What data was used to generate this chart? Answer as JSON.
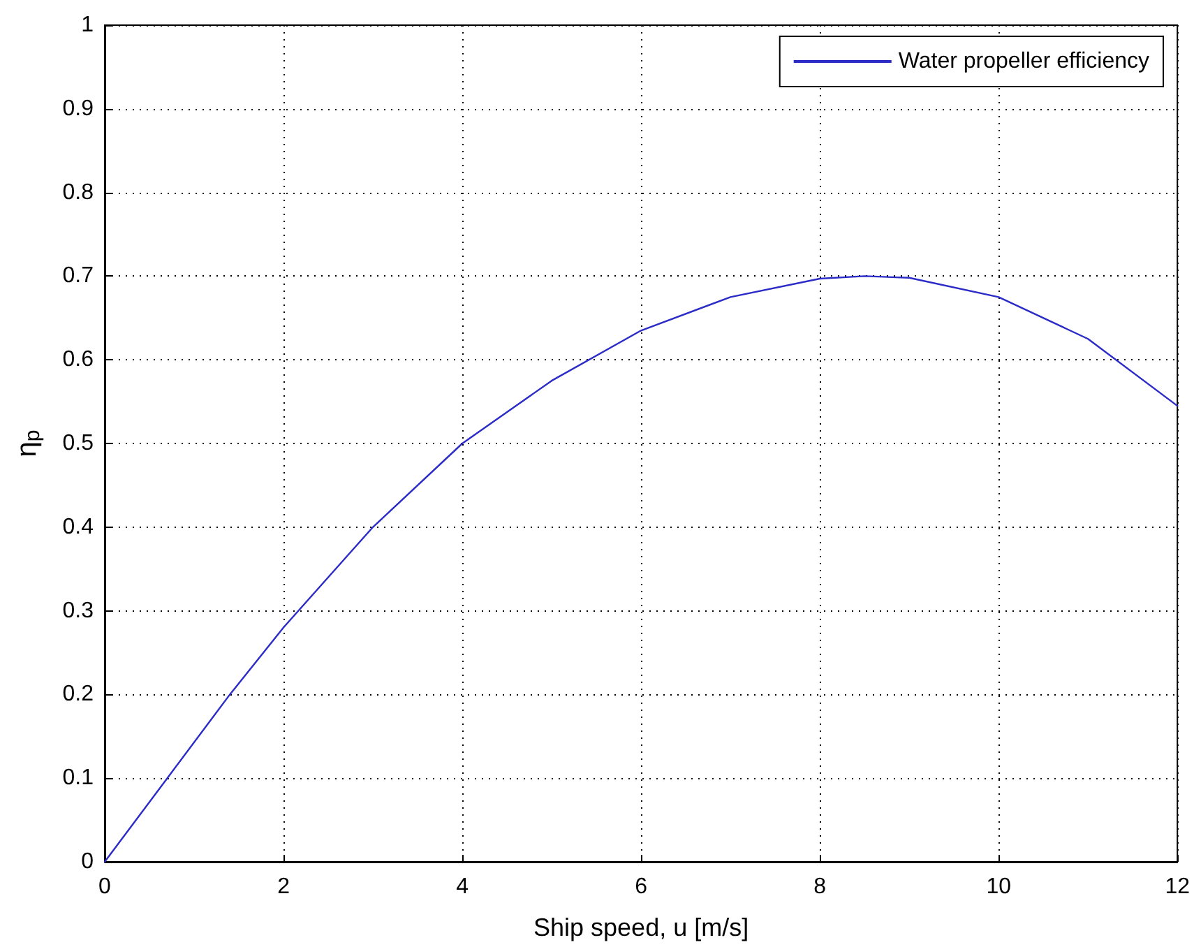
{
  "chart_data": {
    "type": "line",
    "xlabel": "Ship speed, u [m/s]",
    "ylabel": "η$_{p}$",
    "x": [
      0,
      0.7,
      1.4,
      2,
      3,
      4,
      5,
      6,
      7,
      8,
      8.5,
      9,
      10,
      11,
      12
    ],
    "series": [
      {
        "name": "Water propeller efficiency",
        "color": "#2b2bc8",
        "values": [
          0,
          0.1,
          0.2,
          0.28,
          0.4,
          0.5,
          0.575,
          0.635,
          0.675,
          0.697,
          0.7,
          0.698,
          0.675,
          0.625,
          0.545
        ]
      }
    ],
    "xlim": [
      0,
      12
    ],
    "xticks": [
      0,
      2,
      4,
      6,
      8,
      10,
      12
    ],
    "ylim": [
      0,
      1
    ],
    "yticks": [
      0,
      0.1,
      0.2,
      0.3,
      0.4,
      0.5,
      0.6,
      0.7,
      0.8,
      0.9,
      1
    ],
    "grid": true,
    "legend": "top right",
    "marker": "none",
    "line_style": "solid"
  }
}
